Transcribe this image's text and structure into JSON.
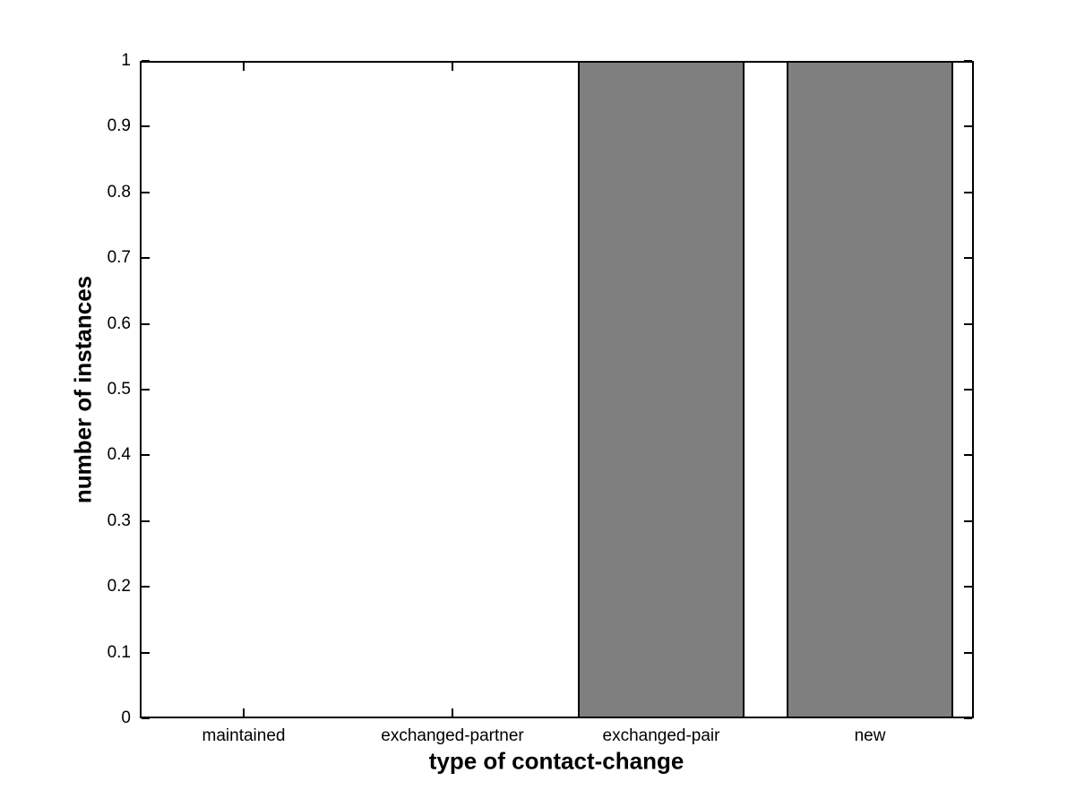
{
  "figure": {
    "background_color": "#ffffff",
    "axis_color": "#000000"
  },
  "chart_data": {
    "type": "bar",
    "title": "",
    "xlabel": "type of contact-change",
    "ylabel": "number of instances",
    "categories": [
      "maintained",
      "exchanged-partner",
      "exchanged-pair",
      "new"
    ],
    "values": [
      0,
      0,
      1,
      1
    ],
    "ylim": [
      0,
      1
    ],
    "y_ticks": [
      0,
      0.1,
      0.2,
      0.3,
      0.4,
      0.5,
      0.6,
      0.7,
      0.8,
      0.9,
      1
    ],
    "y_tick_labels": [
      "0",
      "0.1",
      "0.2",
      "0.3",
      "0.4",
      "0.5",
      "0.6",
      "0.7",
      "0.8",
      "0.9",
      "1"
    ],
    "bar_color": "#7f7f7f",
    "bar_edge_color": "#000000",
    "bar_width_fraction": 0.8,
    "grid": false,
    "legend": null,
    "tick_style": "inward-all-sides"
  }
}
